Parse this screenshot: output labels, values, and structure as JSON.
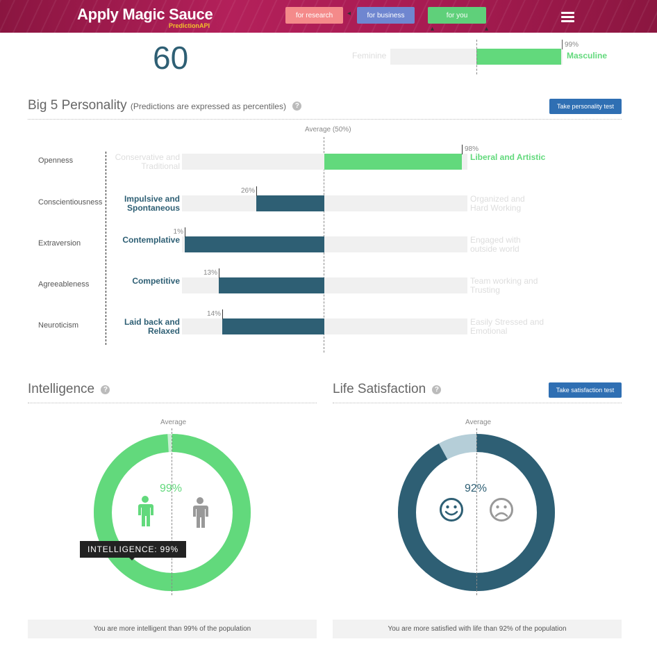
{
  "header": {
    "brand": "Apply Magic Sauce",
    "brand_sub": "PredictionAPI",
    "nav": [
      {
        "label": "for research",
        "color": "#f48a8a"
      },
      {
        "label": "for business",
        "color": "#6f86d0"
      },
      {
        "label": "for you",
        "color": "#5fd07a"
      }
    ],
    "menu_icon": "hamburger-icon"
  },
  "age": {
    "value": "60"
  },
  "gender": {
    "left_label": "Feminine",
    "right_label": "Masculine",
    "percent_label": "99%",
    "percent": 99
  },
  "big5": {
    "title": "Big 5 Personality",
    "subtitle": "(Predictions are expressed as percentiles)",
    "help": "?",
    "button": "Take personality test",
    "average_label": "Average (50%)",
    "traits": [
      {
        "name": "Openness",
        "left": [
          "Conservative and",
          "Traditional"
        ],
        "right": [
          "Liberal and Artistic"
        ],
        "percent": 98,
        "percent_label": "98%",
        "side": "right"
      },
      {
        "name": "Conscientiousness",
        "left": [
          "Impulsive and",
          "Spontaneous"
        ],
        "right": [
          "Organized and",
          "Hard Working"
        ],
        "percent": 26,
        "percent_label": "26%",
        "side": "left"
      },
      {
        "name": "Extraversion",
        "left": [
          "Contemplative"
        ],
        "right": [
          "Engaged with",
          "outside world"
        ],
        "percent": 1,
        "percent_label": "1%",
        "side": "left"
      },
      {
        "name": "Agreeableness",
        "left": [
          "Competitive"
        ],
        "right": [
          "Team working and",
          "Trusting"
        ],
        "percent": 13,
        "percent_label": "13%",
        "side": "left"
      },
      {
        "name": "Neuroticism",
        "left": [
          "Laid back and",
          "Relaxed"
        ],
        "right": [
          "Easily Stressed and",
          "Emotional"
        ],
        "percent": 14,
        "percent_label": "14%",
        "side": "left"
      }
    ]
  },
  "intelligence": {
    "title": "Intelligence",
    "help": "?",
    "average_label": "Average",
    "percent": 99,
    "percent_label": "99%",
    "tooltip": "INTELLIGENCE: 99%",
    "icons": [
      "person-green-icon",
      "person-gray-icon"
    ],
    "caption": "You are more intelligent than 99% of the population",
    "color": "#62d97c"
  },
  "life_satisfaction": {
    "title": "Life Satisfaction",
    "help": "?",
    "button": "Take satisfaction test",
    "average_label": "Average",
    "percent": 92,
    "percent_label": "92%",
    "icons": [
      "smiley-icon",
      "frown-icon"
    ],
    "caption": "You are more satisfied with life than 92% of the population",
    "color": "#2e5f74"
  }
}
